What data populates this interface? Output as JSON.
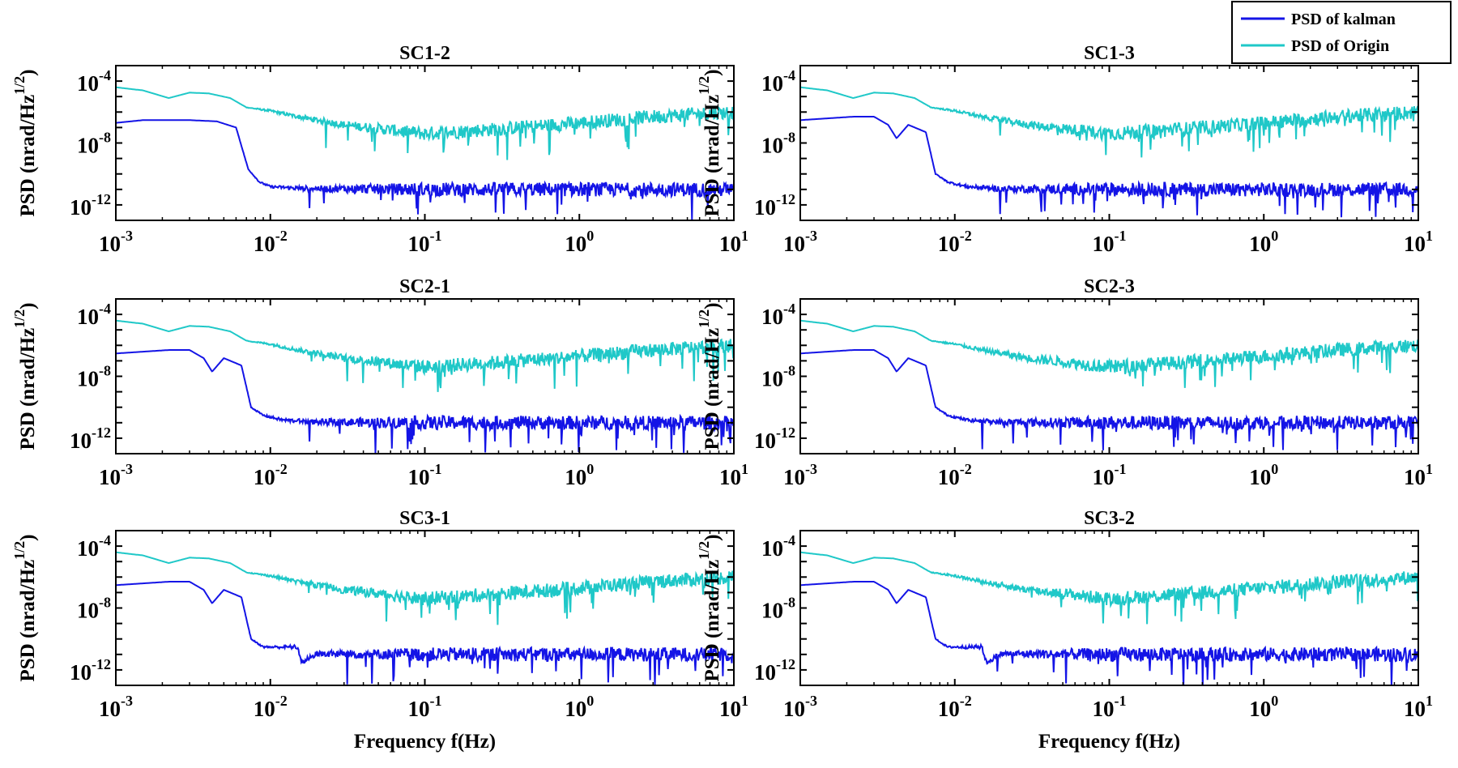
{
  "figure": {
    "ylabel_main": "PSD (nrad/Hz",
    "ylabel_sup": "1/2",
    "ylabel_close": ")",
    "xlabel": "Frequency f(Hz)"
  },
  "legend": {
    "entries": [
      {
        "label": "PSD of kalman",
        "color": "#1414e6"
      },
      {
        "label": "PSD of Origin",
        "color": "#1fc8c8"
      }
    ]
  },
  "chart_data": [
    {
      "type": "line",
      "title": "SC1-2",
      "xscale": "log",
      "yscale": "log",
      "xlim": [
        0.001,
        10
      ],
      "ylim": [
        1e-13,
        0.001
      ],
      "xticks": [
        {
          "base": "10",
          "exp": "-3"
        },
        {
          "base": "10",
          "exp": "-2"
        },
        {
          "base": "10",
          "exp": "-1"
        },
        {
          "base": "10",
          "exp": "0"
        },
        {
          "base": "10",
          "exp": "1"
        }
      ],
      "yticks": [
        {
          "base": "10",
          "exp": "-4"
        },
        {
          "base": "10",
          "exp": "-8"
        },
        {
          "base": "10",
          "exp": "-12"
        }
      ],
      "series": [
        {
          "name": "PSD of Origin",
          "x": [
            0.001,
            0.0015,
            0.0022,
            0.003,
            0.004,
            0.0055,
            0.007,
            0.01,
            0.015,
            0.03,
            0.1,
            0.3,
            1,
            3,
            10
          ],
          "y": [
            4e-05,
            2.5e-05,
            8e-06,
            1.8e-05,
            1.6e-05,
            8e-06,
            2e-06,
            1.2e-06,
            5e-07,
            1.5e-07,
            4e-08,
            8e-08,
            2e-07,
            5e-07,
            1e-06
          ]
        },
        {
          "name": "PSD of kalman",
          "x": [
            0.001,
            0.0015,
            0.003,
            0.0045,
            0.006,
            0.0072,
            0.0085,
            0.01,
            0.015,
            0.03,
            0.1,
            0.5,
            1,
            3,
            10
          ],
          "y": [
            2e-07,
            3e-07,
            3e-07,
            2.5e-07,
            1e-07,
            2e-10,
            3e-11,
            1.5e-11,
            1.2e-11,
            1.1e-11,
            1e-11,
            1e-11,
            1e-11,
            1e-11,
            1e-11
          ]
        }
      ]
    },
    {
      "type": "line",
      "title": "SC1-3",
      "xscale": "log",
      "yscale": "log",
      "xlim": [
        0.001,
        10
      ],
      "ylim": [
        1e-13,
        0.001
      ],
      "xticks": [
        {
          "base": "10",
          "exp": "-3"
        },
        {
          "base": "10",
          "exp": "-2"
        },
        {
          "base": "10",
          "exp": "-1"
        },
        {
          "base": "10",
          "exp": "0"
        },
        {
          "base": "10",
          "exp": "1"
        }
      ],
      "yticks": [
        {
          "base": "10",
          "exp": "-4"
        },
        {
          "base": "10",
          "exp": "-8"
        },
        {
          "base": "10",
          "exp": "-12"
        }
      ],
      "series": [
        {
          "name": "PSD of Origin",
          "x": [
            0.001,
            0.0015,
            0.0022,
            0.003,
            0.004,
            0.0055,
            0.007,
            0.01,
            0.015,
            0.03,
            0.1,
            0.3,
            1,
            3,
            10
          ],
          "y": [
            4e-05,
            2.5e-05,
            8e-06,
            1.8e-05,
            1.6e-05,
            8e-06,
            2e-06,
            1.2e-06,
            5e-07,
            1.5e-07,
            4e-08,
            8e-08,
            2e-07,
            5e-07,
            1e-06
          ]
        },
        {
          "name": "PSD of kalman",
          "x": [
            0.001,
            0.0022,
            0.003,
            0.0037,
            0.0042,
            0.005,
            0.0065,
            0.0075,
            0.009,
            0.012,
            0.02,
            0.1,
            1,
            10
          ],
          "y": [
            3e-07,
            5e-07,
            5e-07,
            1.5e-07,
            2e-08,
            1.5e-07,
            5e-08,
            1e-10,
            3e-11,
            1.5e-11,
            1.1e-11,
            1e-11,
            1e-11,
            1e-11
          ]
        }
      ]
    },
    {
      "type": "line",
      "title": "SC2-1",
      "xscale": "log",
      "yscale": "log",
      "xlim": [
        0.001,
        10
      ],
      "ylim": [
        1e-13,
        0.001
      ],
      "xticks": [
        {
          "base": "10",
          "exp": "-3"
        },
        {
          "base": "10",
          "exp": "-2"
        },
        {
          "base": "10",
          "exp": "-1"
        },
        {
          "base": "10",
          "exp": "0"
        },
        {
          "base": "10",
          "exp": "1"
        }
      ],
      "yticks": [
        {
          "base": "10",
          "exp": "-4"
        },
        {
          "base": "10",
          "exp": "-8"
        },
        {
          "base": "10",
          "exp": "-12"
        }
      ],
      "series": [
        {
          "name": "PSD of Origin",
          "x": [
            0.001,
            0.0015,
            0.0022,
            0.003,
            0.004,
            0.0055,
            0.007,
            0.01,
            0.015,
            0.03,
            0.1,
            0.3,
            1,
            3,
            10
          ],
          "y": [
            4e-05,
            2.5e-05,
            8e-06,
            1.8e-05,
            1.6e-05,
            8e-06,
            2e-06,
            1.2e-06,
            5e-07,
            1.5e-07,
            4e-08,
            8e-08,
            2e-07,
            5e-07,
            1e-06
          ]
        },
        {
          "name": "PSD of kalman",
          "x": [
            0.001,
            0.0022,
            0.003,
            0.0037,
            0.0042,
            0.005,
            0.0065,
            0.0075,
            0.009,
            0.012,
            0.02,
            0.1,
            1,
            10
          ],
          "y": [
            3e-07,
            5e-07,
            5e-07,
            1.5e-07,
            2e-08,
            1.5e-07,
            5e-08,
            1e-10,
            3e-11,
            1.5e-11,
            1.1e-11,
            1e-11,
            1e-11,
            1e-11
          ]
        }
      ]
    },
    {
      "type": "line",
      "title": "SC2-3",
      "xscale": "log",
      "yscale": "log",
      "xlim": [
        0.001,
        10
      ],
      "ylim": [
        1e-13,
        0.001
      ],
      "xticks": [
        {
          "base": "10",
          "exp": "-3"
        },
        {
          "base": "10",
          "exp": "-2"
        },
        {
          "base": "10",
          "exp": "-1"
        },
        {
          "base": "10",
          "exp": "0"
        },
        {
          "base": "10",
          "exp": "1"
        }
      ],
      "yticks": [
        {
          "base": "10",
          "exp": "-4"
        },
        {
          "base": "10",
          "exp": "-8"
        },
        {
          "base": "10",
          "exp": "-12"
        }
      ],
      "series": [
        {
          "name": "PSD of Origin",
          "x": [
            0.001,
            0.0015,
            0.0022,
            0.003,
            0.004,
            0.0055,
            0.007,
            0.01,
            0.015,
            0.03,
            0.1,
            0.3,
            1,
            3,
            10
          ],
          "y": [
            4e-05,
            2.5e-05,
            8e-06,
            1.8e-05,
            1.6e-05,
            8e-06,
            2e-06,
            1.2e-06,
            5e-07,
            1.5e-07,
            4e-08,
            8e-08,
            2e-07,
            5e-07,
            1e-06
          ]
        },
        {
          "name": "PSD of kalman",
          "x": [
            0.001,
            0.0022,
            0.003,
            0.0037,
            0.0042,
            0.005,
            0.0065,
            0.0075,
            0.009,
            0.012,
            0.02,
            0.1,
            1,
            10
          ],
          "y": [
            3e-07,
            5e-07,
            5e-07,
            1.5e-07,
            2e-08,
            1.5e-07,
            5e-08,
            1e-10,
            3e-11,
            1.5e-11,
            1.1e-11,
            1e-11,
            1e-11,
            1e-11
          ]
        }
      ]
    },
    {
      "type": "line",
      "title": "SC3-1",
      "xscale": "log",
      "yscale": "log",
      "xlim": [
        0.001,
        10
      ],
      "ylim": [
        1e-13,
        0.001
      ],
      "xticks": [
        {
          "base": "10",
          "exp": "-3"
        },
        {
          "base": "10",
          "exp": "-2"
        },
        {
          "base": "10",
          "exp": "-1"
        },
        {
          "base": "10",
          "exp": "0"
        },
        {
          "base": "10",
          "exp": "1"
        }
      ],
      "yticks": [
        {
          "base": "10",
          "exp": "-4"
        },
        {
          "base": "10",
          "exp": "-8"
        },
        {
          "base": "10",
          "exp": "-12"
        }
      ],
      "series": [
        {
          "name": "PSD of Origin",
          "x": [
            0.001,
            0.0015,
            0.0022,
            0.003,
            0.004,
            0.0055,
            0.007,
            0.01,
            0.015,
            0.03,
            0.1,
            0.3,
            1,
            3,
            10
          ],
          "y": [
            4e-05,
            2.5e-05,
            8e-06,
            1.8e-05,
            1.6e-05,
            8e-06,
            2e-06,
            1.2e-06,
            5e-07,
            1.5e-07,
            4e-08,
            8e-08,
            2e-07,
            5e-07,
            1e-06
          ]
        },
        {
          "name": "PSD of kalman",
          "x": [
            0.001,
            0.0022,
            0.003,
            0.0037,
            0.0042,
            0.005,
            0.0065,
            0.0075,
            0.009,
            0.012,
            0.015,
            0.016,
            0.02,
            0.1,
            1,
            10
          ],
          "y": [
            3e-07,
            5e-07,
            5e-07,
            1.5e-07,
            2e-08,
            1.5e-07,
            5e-08,
            1e-10,
            3e-11,
            3e-11,
            3e-11,
            3e-12,
            1.1e-11,
            1e-11,
            1e-11,
            1e-11
          ]
        }
      ]
    },
    {
      "type": "line",
      "title": "SC3-2",
      "xscale": "log",
      "yscale": "log",
      "xlim": [
        0.001,
        10
      ],
      "ylim": [
        1e-13,
        0.001
      ],
      "xticks": [
        {
          "base": "10",
          "exp": "-3"
        },
        {
          "base": "10",
          "exp": "-2"
        },
        {
          "base": "10",
          "exp": "-1"
        },
        {
          "base": "10",
          "exp": "0"
        },
        {
          "base": "10",
          "exp": "1"
        }
      ],
      "yticks": [
        {
          "base": "10",
          "exp": "-4"
        },
        {
          "base": "10",
          "exp": "-8"
        },
        {
          "base": "10",
          "exp": "-12"
        }
      ],
      "series": [
        {
          "name": "PSD of Origin",
          "x": [
            0.001,
            0.0015,
            0.0022,
            0.003,
            0.004,
            0.0055,
            0.007,
            0.01,
            0.015,
            0.03,
            0.1,
            0.3,
            1,
            3,
            10
          ],
          "y": [
            4e-05,
            2.5e-05,
            8e-06,
            1.8e-05,
            1.6e-05,
            8e-06,
            2e-06,
            1.2e-06,
            5e-07,
            1.5e-07,
            4e-08,
            8e-08,
            2e-07,
            5e-07,
            1e-06
          ]
        },
        {
          "name": "PSD of kalman",
          "x": [
            0.001,
            0.0022,
            0.003,
            0.0037,
            0.0042,
            0.005,
            0.0065,
            0.0075,
            0.009,
            0.012,
            0.015,
            0.016,
            0.02,
            0.1,
            1,
            10
          ],
          "y": [
            3e-07,
            5e-07,
            5e-07,
            1.5e-07,
            2e-08,
            1.5e-07,
            5e-08,
            1e-10,
            3e-11,
            3e-11,
            3e-11,
            3e-12,
            1.1e-11,
            1e-11,
            1e-11,
            1e-11
          ]
        }
      ]
    }
  ]
}
